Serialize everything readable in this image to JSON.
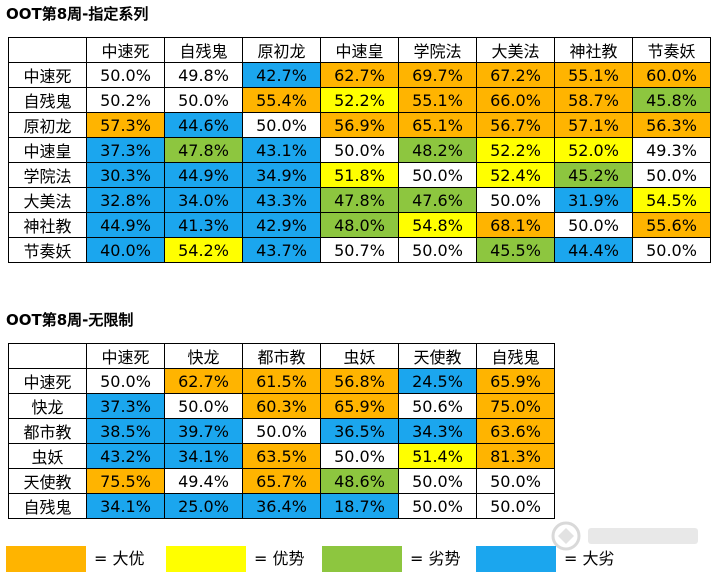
{
  "table1": {
    "title": "OOT第8周-指定系列",
    "columns": [
      "中速死",
      "自残鬼",
      "原初龙",
      "中速皇",
      "学院法",
      "大美法",
      "神社教",
      "节奏妖"
    ],
    "rows": [
      {
        "label": "中速死",
        "cells": [
          {
            "v": "50.0%",
            "c": "white"
          },
          {
            "v": "49.8%",
            "c": "white"
          },
          {
            "v": "42.7%",
            "c": "blue"
          },
          {
            "v": "62.7%",
            "c": "orange"
          },
          {
            "v": "69.7%",
            "c": "orange"
          },
          {
            "v": "67.2%",
            "c": "orange"
          },
          {
            "v": "55.1%",
            "c": "orange"
          },
          {
            "v": "60.0%",
            "c": "orange"
          }
        ]
      },
      {
        "label": "自残鬼",
        "cells": [
          {
            "v": "50.2%",
            "c": "white"
          },
          {
            "v": "50.0%",
            "c": "white"
          },
          {
            "v": "55.4%",
            "c": "orange"
          },
          {
            "v": "52.2%",
            "c": "yellow"
          },
          {
            "v": "55.1%",
            "c": "orange"
          },
          {
            "v": "66.0%",
            "c": "orange"
          },
          {
            "v": "58.7%",
            "c": "orange"
          },
          {
            "v": "45.8%",
            "c": "green"
          }
        ]
      },
      {
        "label": "原初龙",
        "cells": [
          {
            "v": "57.3%",
            "c": "orange"
          },
          {
            "v": "44.6%",
            "c": "blue"
          },
          {
            "v": "50.0%",
            "c": "white"
          },
          {
            "v": "56.9%",
            "c": "orange"
          },
          {
            "v": "65.1%",
            "c": "orange"
          },
          {
            "v": "56.7%",
            "c": "orange"
          },
          {
            "v": "57.1%",
            "c": "orange"
          },
          {
            "v": "56.3%",
            "c": "orange"
          }
        ]
      },
      {
        "label": "中速皇",
        "cells": [
          {
            "v": "37.3%",
            "c": "blue"
          },
          {
            "v": "47.8%",
            "c": "green"
          },
          {
            "v": "43.1%",
            "c": "blue"
          },
          {
            "v": "50.0%",
            "c": "white"
          },
          {
            "v": "48.2%",
            "c": "green"
          },
          {
            "v": "52.2%",
            "c": "yellow"
          },
          {
            "v": "52.0%",
            "c": "yellow"
          },
          {
            "v": "49.3%",
            "c": "white"
          }
        ]
      },
      {
        "label": "学院法",
        "cells": [
          {
            "v": "30.3%",
            "c": "blue"
          },
          {
            "v": "44.9%",
            "c": "blue"
          },
          {
            "v": "34.9%",
            "c": "blue"
          },
          {
            "v": "51.8%",
            "c": "yellow"
          },
          {
            "v": "50.0%",
            "c": "white"
          },
          {
            "v": "52.4%",
            "c": "yellow"
          },
          {
            "v": "45.2%",
            "c": "green"
          },
          {
            "v": "50.0%",
            "c": "white"
          }
        ]
      },
      {
        "label": "大美法",
        "cells": [
          {
            "v": "32.8%",
            "c": "blue"
          },
          {
            "v": "34.0%",
            "c": "blue"
          },
          {
            "v": "43.3%",
            "c": "blue"
          },
          {
            "v": "47.8%",
            "c": "green"
          },
          {
            "v": "47.6%",
            "c": "green"
          },
          {
            "v": "50.0%",
            "c": "white"
          },
          {
            "v": "31.9%",
            "c": "blue"
          },
          {
            "v": "54.5%",
            "c": "yellow"
          }
        ]
      },
      {
        "label": "神社教",
        "cells": [
          {
            "v": "44.9%",
            "c": "blue"
          },
          {
            "v": "41.3%",
            "c": "blue"
          },
          {
            "v": "42.9%",
            "c": "blue"
          },
          {
            "v": "48.0%",
            "c": "green"
          },
          {
            "v": "54.8%",
            "c": "yellow"
          },
          {
            "v": "68.1%",
            "c": "orange"
          },
          {
            "v": "50.0%",
            "c": "white"
          },
          {
            "v": "55.6%",
            "c": "orange"
          }
        ]
      },
      {
        "label": "节奏妖",
        "cells": [
          {
            "v": "40.0%",
            "c": "blue"
          },
          {
            "v": "54.2%",
            "c": "yellow"
          },
          {
            "v": "43.7%",
            "c": "blue"
          },
          {
            "v": "50.7%",
            "c": "white"
          },
          {
            "v": "50.0%",
            "c": "white"
          },
          {
            "v": "45.5%",
            "c": "green"
          },
          {
            "v": "44.4%",
            "c": "blue"
          },
          {
            "v": "50.0%",
            "c": "white"
          }
        ]
      }
    ]
  },
  "table2": {
    "title": "OOT第8周-无限制",
    "columns": [
      "中速死",
      "快龙",
      "都市教",
      "虫妖",
      "天使教",
      "自残鬼"
    ],
    "rows": [
      {
        "label": "中速死",
        "cells": [
          {
            "v": "50.0%",
            "c": "white"
          },
          {
            "v": "62.7%",
            "c": "orange"
          },
          {
            "v": "61.5%",
            "c": "orange"
          },
          {
            "v": "56.8%",
            "c": "orange"
          },
          {
            "v": "24.5%",
            "c": "blue"
          },
          {
            "v": "65.9%",
            "c": "orange"
          }
        ]
      },
      {
        "label": "快龙",
        "cells": [
          {
            "v": "37.3%",
            "c": "blue"
          },
          {
            "v": "50.0%",
            "c": "white"
          },
          {
            "v": "60.3%",
            "c": "orange"
          },
          {
            "v": "65.9%",
            "c": "orange"
          },
          {
            "v": "50.6%",
            "c": "white"
          },
          {
            "v": "75.0%",
            "c": "orange"
          }
        ]
      },
      {
        "label": "都市教",
        "cells": [
          {
            "v": "38.5%",
            "c": "blue"
          },
          {
            "v": "39.7%",
            "c": "blue"
          },
          {
            "v": "50.0%",
            "c": "white"
          },
          {
            "v": "36.5%",
            "c": "blue"
          },
          {
            "v": "34.3%",
            "c": "blue"
          },
          {
            "v": "63.6%",
            "c": "orange"
          }
        ]
      },
      {
        "label": "虫妖",
        "cells": [
          {
            "v": "43.2%",
            "c": "blue"
          },
          {
            "v": "34.1%",
            "c": "blue"
          },
          {
            "v": "63.5%",
            "c": "orange"
          },
          {
            "v": "50.0%",
            "c": "white"
          },
          {
            "v": "51.4%",
            "c": "yellow"
          },
          {
            "v": "81.3%",
            "c": "orange"
          }
        ]
      },
      {
        "label": "天使教",
        "cells": [
          {
            "v": "75.5%",
            "c": "orange"
          },
          {
            "v": "49.4%",
            "c": "white"
          },
          {
            "v": "65.7%",
            "c": "orange"
          },
          {
            "v": "48.6%",
            "c": "green"
          },
          {
            "v": "50.0%",
            "c": "white"
          },
          {
            "v": "50.0%",
            "c": "white"
          }
        ]
      },
      {
        "label": "自残鬼",
        "cells": [
          {
            "v": "34.1%",
            "c": "blue"
          },
          {
            "v": "25.0%",
            "c": "blue"
          },
          {
            "v": "36.4%",
            "c": "blue"
          },
          {
            "v": "18.7%",
            "c": "blue"
          },
          {
            "v": "50.0%",
            "c": "white"
          },
          {
            "v": "50.0%",
            "c": "white"
          }
        ]
      }
    ]
  },
  "legend": [
    {
      "color": "orange",
      "label": "= 大优"
    },
    {
      "color": "yellow",
      "label": "= 优势"
    },
    {
      "color": "green",
      "label": "= 劣势"
    },
    {
      "color": "blue",
      "label": "= 大劣"
    }
  ],
  "colors": {
    "orange": "#FFB400",
    "yellow": "#FFFF00",
    "green": "#8DC63F",
    "blue": "#1BA6EE",
    "white": "#FFFFFF"
  },
  "watermark_icon": "site-logo-watermark"
}
